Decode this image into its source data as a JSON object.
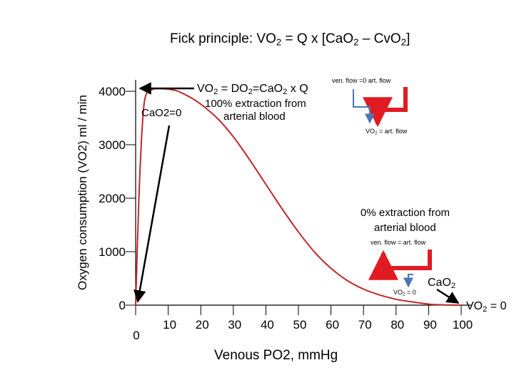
{
  "title": {
    "prefix": "Fick principle:  VO",
    "sub1": "2",
    "mid": " = Q x [CaO",
    "sub2": "2",
    "mid2": " – CvO",
    "sub3": "2",
    "suffix": "]"
  },
  "annotations": {
    "ceiling_eq": {
      "a": "VO",
      "s1": "2",
      "b": " = DO",
      "s2": "2",
      "c": "=CaO",
      "s3": "2",
      "d": " x Q"
    },
    "extraction_100": [
      "100% extraction from",
      "arterial blood"
    ],
    "cao2_zero": "CaO2=0",
    "ven_flow_zero": "ven. flow =0  art. flow",
    "vo2_art_flow": "VO",
    "vo2_art_flow_sub": "2",
    "vo2_art_flow_rest": " = art. flow",
    "extraction_0": [
      "0% extraction from",
      "arterial blood"
    ],
    "ven_eq_art": "ven. flow = art. flow",
    "vo2_zero_small": "VO",
    "vo2_zero_small_sub": "2",
    "vo2_zero_small_rest": " = 0",
    "cao2_label": "CaO",
    "cao2_label_sub": "2",
    "vo2_zero_large": "VO",
    "vo2_zero_large_sub": "2",
    "vo2_zero_large_rest": " = 0"
  },
  "chart_data": {
    "type": "line",
    "title": "Fick principle:  VO2 = Q x [CaO2 – CvO2]",
    "xlabel": "Venous PO2, mmHg",
    "ylabel": "Oxygen consumption (VO2) ml / min",
    "xlim": [
      0,
      100
    ],
    "ylim": [
      0,
      4000
    ],
    "x_ticks": [
      "0",
      "10",
      "20",
      "30",
      "40",
      "50",
      "60",
      "70",
      "80",
      "90",
      "100"
    ],
    "y_ticks": [
      "0",
      "1000",
      "2000",
      "3000",
      "4000"
    ],
    "grid": false,
    "line_color": "#c0282d",
    "arrow_color": "#e11b22",
    "series": [
      {
        "x": [
          0,
          1,
          2,
          3,
          5,
          7,
          10,
          13,
          17,
          20,
          25,
          30,
          35,
          40,
          45,
          50,
          55,
          60,
          65,
          70,
          75,
          80,
          85,
          88,
          90,
          92,
          95,
          100
        ],
        "y": [
          0,
          2000,
          3300,
          3900,
          4030,
          4050,
          4040,
          4000,
          3880,
          3760,
          3500,
          3150,
          2720,
          2260,
          1800,
          1370,
          990,
          690,
          460,
          300,
          190,
          110,
          60,
          35,
          20,
          10,
          4,
          0
        ]
      }
    ]
  }
}
